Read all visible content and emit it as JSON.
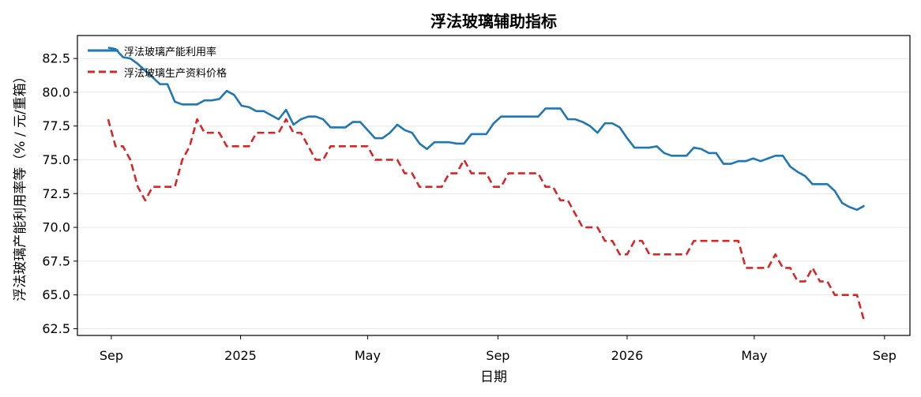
{
  "chart_data": {
    "type": "line",
    "title": "浮法玻璃辅助指标",
    "xlabel": "日期",
    "ylabel": "浮法玻璃产能利用率等（% / 元/重箱）",
    "ylim": [
      62.0,
      84.2
    ],
    "xlim": [
      "2024-07-31",
      "2026-09-25"
    ],
    "grid": "horizontal",
    "legend_position": "top-left",
    "x_ticks": [
      {
        "label": "Sep",
        "date": "2024-09-01"
      },
      {
        "label": "2025",
        "date": "2025-01-01"
      },
      {
        "label": "May",
        "date": "2025-05-01"
      },
      {
        "label": "Sep",
        "date": "2025-09-01"
      },
      {
        "label": "2026",
        "date": "2026-01-01"
      },
      {
        "label": "May",
        "date": "2026-05-01"
      },
      {
        "label": "Sep",
        "date": "2026-09-01"
      }
    ],
    "y_ticks": [
      62.5,
      65.0,
      67.5,
      70.0,
      72.5,
      75.0,
      77.5,
      80.0,
      82.5
    ],
    "series": [
      {
        "name": "浮法玻璃产能利用率",
        "color": "#1f77b4",
        "style": "solid",
        "points": [
          [
            "2024-08-29",
            83.3
          ],
          [
            "2024-09-05",
            83.2
          ],
          [
            "2024-09-12",
            82.6
          ],
          [
            "2024-09-19",
            82.5
          ],
          [
            "2024-09-26",
            82.1
          ],
          [
            "2024-10-03",
            81.6
          ],
          [
            "2024-10-10",
            81.1
          ],
          [
            "2024-10-17",
            80.6
          ],
          [
            "2024-10-24",
            80.6
          ],
          [
            "2024-10-31",
            79.3
          ],
          [
            "2024-11-07",
            79.1
          ],
          [
            "2024-11-14",
            79.1
          ],
          [
            "2024-11-21",
            79.1
          ],
          [
            "2024-11-28",
            79.4
          ],
          [
            "2024-12-05",
            79.4
          ],
          [
            "2024-12-12",
            79.5
          ],
          [
            "2024-12-19",
            80.1
          ],
          [
            "2024-12-26",
            79.8
          ],
          [
            "2025-01-02",
            79.0
          ],
          [
            "2025-01-09",
            78.9
          ],
          [
            "2025-01-16",
            78.6
          ],
          [
            "2025-01-23",
            78.6
          ],
          [
            "2025-01-30",
            78.3
          ],
          [
            "2025-02-06",
            78.0
          ],
          [
            "2025-02-13",
            78.7
          ],
          [
            "2025-02-20",
            77.6
          ],
          [
            "2025-02-27",
            78.0
          ],
          [
            "2025-03-06",
            78.2
          ],
          [
            "2025-03-13",
            78.2
          ],
          [
            "2025-03-20",
            78.0
          ],
          [
            "2025-03-27",
            77.4
          ],
          [
            "2025-04-03",
            77.4
          ],
          [
            "2025-04-10",
            77.4
          ],
          [
            "2025-04-17",
            77.8
          ],
          [
            "2025-04-24",
            77.8
          ],
          [
            "2025-05-01",
            77.2
          ],
          [
            "2025-05-08",
            76.6
          ],
          [
            "2025-05-15",
            76.6
          ],
          [
            "2025-05-22",
            77.0
          ],
          [
            "2025-05-29",
            77.6
          ],
          [
            "2025-06-05",
            77.2
          ],
          [
            "2025-06-12",
            77.0
          ],
          [
            "2025-06-19",
            76.2
          ],
          [
            "2025-06-26",
            75.8
          ],
          [
            "2025-07-03",
            76.3
          ],
          [
            "2025-07-10",
            76.3
          ],
          [
            "2025-07-17",
            76.3
          ],
          [
            "2025-07-24",
            76.2
          ],
          [
            "2025-07-31",
            76.2
          ],
          [
            "2025-08-07",
            76.9
          ],
          [
            "2025-08-14",
            76.9
          ],
          [
            "2025-08-21",
            76.9
          ],
          [
            "2025-08-28",
            77.7
          ],
          [
            "2025-09-04",
            78.2
          ],
          [
            "2025-09-11",
            78.2
          ],
          [
            "2025-09-18",
            78.2
          ],
          [
            "2025-09-25",
            78.2
          ],
          [
            "2025-10-02",
            78.2
          ],
          [
            "2025-10-09",
            78.2
          ],
          [
            "2025-10-16",
            78.8
          ],
          [
            "2025-10-23",
            78.8
          ],
          [
            "2025-10-30",
            78.8
          ],
          [
            "2025-11-06",
            78.0
          ],
          [
            "2025-11-13",
            78.0
          ],
          [
            "2025-11-20",
            77.8
          ],
          [
            "2025-11-27",
            77.5
          ],
          [
            "2025-12-04",
            77.0
          ],
          [
            "2025-12-11",
            77.7
          ],
          [
            "2025-12-18",
            77.7
          ],
          [
            "2025-12-25",
            77.4
          ],
          [
            "2026-01-01",
            76.6
          ],
          [
            "2026-01-08",
            75.9
          ],
          [
            "2026-01-15",
            75.9
          ],
          [
            "2026-01-22",
            75.9
          ],
          [
            "2026-01-29",
            76.0
          ],
          [
            "2026-02-05",
            75.5
          ],
          [
            "2026-02-12",
            75.3
          ],
          [
            "2026-02-19",
            75.3
          ],
          [
            "2026-02-26",
            75.3
          ],
          [
            "2026-03-05",
            75.9
          ],
          [
            "2026-03-12",
            75.8
          ],
          [
            "2026-03-19",
            75.5
          ],
          [
            "2026-03-26",
            75.5
          ],
          [
            "2026-04-02",
            74.7
          ],
          [
            "2026-04-09",
            74.7
          ],
          [
            "2026-04-16",
            74.9
          ],
          [
            "2026-04-23",
            74.9
          ],
          [
            "2026-04-30",
            75.1
          ],
          [
            "2026-05-07",
            74.9
          ],
          [
            "2026-05-14",
            75.1
          ],
          [
            "2026-05-21",
            75.3
          ],
          [
            "2026-05-28",
            75.3
          ],
          [
            "2026-06-04",
            74.5
          ],
          [
            "2026-06-11",
            74.1
          ],
          [
            "2026-06-18",
            73.8
          ],
          [
            "2026-06-25",
            73.2
          ],
          [
            "2026-07-02",
            73.2
          ],
          [
            "2026-07-09",
            73.2
          ],
          [
            "2026-07-16",
            72.7
          ],
          [
            "2026-07-23",
            71.8
          ],
          [
            "2026-07-30",
            71.5
          ],
          [
            "2026-08-06",
            71.3
          ],
          [
            "2026-08-13",
            71.6
          ]
        ]
      },
      {
        "name": "浮法玻璃生产资料价格",
        "color": "#d62728",
        "style": "dashed",
        "points": [
          [
            "2024-08-29",
            78.0
          ],
          [
            "2024-09-05",
            76.0
          ],
          [
            "2024-09-12",
            76.0
          ],
          [
            "2024-09-19",
            75.0
          ],
          [
            "2024-09-26",
            73.0
          ],
          [
            "2024-10-03",
            72.0
          ],
          [
            "2024-10-10",
            73.0
          ],
          [
            "2024-10-17",
            73.0
          ],
          [
            "2024-10-24",
            73.0
          ],
          [
            "2024-10-31",
            73.0
          ],
          [
            "2024-11-07",
            75.0
          ],
          [
            "2024-11-14",
            76.0
          ],
          [
            "2024-11-21",
            78.0
          ],
          [
            "2024-11-28",
            77.0
          ],
          [
            "2024-12-05",
            77.0
          ],
          [
            "2024-12-12",
            77.0
          ],
          [
            "2024-12-19",
            76.0
          ],
          [
            "2024-12-26",
            76.0
          ],
          [
            "2025-01-02",
            76.0
          ],
          [
            "2025-01-09",
            76.0
          ],
          [
            "2025-01-16",
            77.0
          ],
          [
            "2025-01-23",
            77.0
          ],
          [
            "2025-01-30",
            77.0
          ],
          [
            "2025-02-06",
            77.0
          ],
          [
            "2025-02-13",
            78.0
          ],
          [
            "2025-02-20",
            77.0
          ],
          [
            "2025-02-27",
            77.0
          ],
          [
            "2025-03-06",
            76.0
          ],
          [
            "2025-03-13",
            75.0
          ],
          [
            "2025-03-20",
            75.0
          ],
          [
            "2025-03-27",
            76.0
          ],
          [
            "2025-04-03",
            76.0
          ],
          [
            "2025-04-10",
            76.0
          ],
          [
            "2025-04-17",
            76.0
          ],
          [
            "2025-04-24",
            76.0
          ],
          [
            "2025-05-01",
            76.0
          ],
          [
            "2025-05-08",
            75.0
          ],
          [
            "2025-05-15",
            75.0
          ],
          [
            "2025-05-22",
            75.0
          ],
          [
            "2025-05-29",
            75.0
          ],
          [
            "2025-06-05",
            74.0
          ],
          [
            "2025-06-12",
            74.0
          ],
          [
            "2025-06-19",
            73.0
          ],
          [
            "2025-06-26",
            73.0
          ],
          [
            "2025-07-03",
            73.0
          ],
          [
            "2025-07-10",
            73.0
          ],
          [
            "2025-07-17",
            74.0
          ],
          [
            "2025-07-24",
            74.0
          ],
          [
            "2025-07-31",
            75.0
          ],
          [
            "2025-08-07",
            74.0
          ],
          [
            "2025-08-14",
            74.0
          ],
          [
            "2025-08-21",
            74.0
          ],
          [
            "2025-08-28",
            73.0
          ],
          [
            "2025-09-04",
            73.0
          ],
          [
            "2025-09-11",
            74.0
          ],
          [
            "2025-09-18",
            74.0
          ],
          [
            "2025-09-25",
            74.0
          ],
          [
            "2025-10-02",
            74.0
          ],
          [
            "2025-10-09",
            74.0
          ],
          [
            "2025-10-16",
            73.0
          ],
          [
            "2025-10-23",
            73.0
          ],
          [
            "2025-10-30",
            72.0
          ],
          [
            "2025-11-06",
            72.0
          ],
          [
            "2025-11-13",
            71.0
          ],
          [
            "2025-11-20",
            70.0
          ],
          [
            "2025-11-27",
            70.0
          ],
          [
            "2025-12-04",
            70.0
          ],
          [
            "2025-12-11",
            69.0
          ],
          [
            "2025-12-18",
            69.0
          ],
          [
            "2025-12-25",
            68.0
          ],
          [
            "2026-01-01",
            68.0
          ],
          [
            "2026-01-08",
            69.0
          ],
          [
            "2026-01-15",
            69.0
          ],
          [
            "2026-01-22",
            68.0
          ],
          [
            "2026-01-29",
            68.0
          ],
          [
            "2026-02-05",
            68.0
          ],
          [
            "2026-02-12",
            68.0
          ],
          [
            "2026-02-19",
            68.0
          ],
          [
            "2026-02-26",
            68.0
          ],
          [
            "2026-03-05",
            69.0
          ],
          [
            "2026-03-12",
            69.0
          ],
          [
            "2026-03-19",
            69.0
          ],
          [
            "2026-03-26",
            69.0
          ],
          [
            "2026-04-02",
            69.0
          ],
          [
            "2026-04-09",
            69.0
          ],
          [
            "2026-04-16",
            69.0
          ],
          [
            "2026-04-23",
            67.0
          ],
          [
            "2026-04-30",
            67.0
          ],
          [
            "2026-05-07",
            67.0
          ],
          [
            "2026-05-14",
            67.0
          ],
          [
            "2026-05-21",
            68.0
          ],
          [
            "2026-05-28",
            67.0
          ],
          [
            "2026-06-04",
            67.0
          ],
          [
            "2026-06-11",
            66.0
          ],
          [
            "2026-06-18",
            66.0
          ],
          [
            "2026-06-25",
            67.0
          ],
          [
            "2026-07-02",
            66.0
          ],
          [
            "2026-07-09",
            66.0
          ],
          [
            "2026-07-16",
            65.0
          ],
          [
            "2026-07-23",
            65.0
          ],
          [
            "2026-07-30",
            65.0
          ],
          [
            "2026-08-06",
            65.0
          ],
          [
            "2026-08-13",
            63.0
          ]
        ]
      }
    ]
  }
}
